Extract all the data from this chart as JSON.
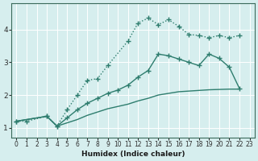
{
  "xlabel": "Humidex (Indice chaleur)",
  "bg_color": "#d6eeee",
  "grid_color": "#b8d8d8",
  "line_color": "#2e7d6e",
  "xlim": [
    -0.5,
    23.5
  ],
  "ylim": [
    0.7,
    4.8
  ],
  "xticks": [
    0,
    1,
    2,
    3,
    4,
    5,
    6,
    7,
    8,
    9,
    10,
    11,
    12,
    13,
    14,
    15,
    16,
    17,
    18,
    19,
    20,
    21,
    22,
    23
  ],
  "yticks": [
    1,
    2,
    3,
    4
  ],
  "curve1_x": [
    0,
    1,
    3,
    4,
    5,
    6,
    7,
    8,
    9,
    11,
    12,
    13,
    14,
    15,
    16,
    17,
    18,
    19,
    20,
    21,
    22
  ],
  "curve1_y": [
    1.2,
    1.2,
    1.35,
    1.05,
    1.55,
    2.0,
    2.45,
    2.5,
    2.9,
    3.65,
    4.2,
    4.35,
    4.15,
    4.3,
    4.1,
    3.85,
    3.82,
    3.75,
    3.82,
    3.75,
    3.82
  ],
  "curve2_x": [
    0,
    3,
    4,
    5,
    6,
    7,
    8,
    9,
    10,
    11,
    12,
    13,
    14,
    15,
    16,
    17,
    18,
    19,
    20,
    21,
    22
  ],
  "curve2_y": [
    1.2,
    1.35,
    1.05,
    1.3,
    1.55,
    1.75,
    1.9,
    2.05,
    2.15,
    2.3,
    2.55,
    2.75,
    3.25,
    3.2,
    3.1,
    3.0,
    2.9,
    3.25,
    3.12,
    2.85,
    2.2
  ],
  "curve3_x": [
    0,
    3,
    4,
    5,
    6,
    7,
    8,
    9,
    10,
    11,
    12,
    13,
    14,
    15,
    16,
    17,
    18,
    19,
    20,
    21,
    22
  ],
  "curve3_y": [
    1.2,
    1.35,
    1.05,
    1.15,
    1.25,
    1.38,
    1.48,
    1.58,
    1.65,
    1.72,
    1.82,
    1.9,
    2.0,
    2.05,
    2.1,
    2.12,
    2.14,
    2.16,
    2.17,
    2.18,
    2.18
  ]
}
